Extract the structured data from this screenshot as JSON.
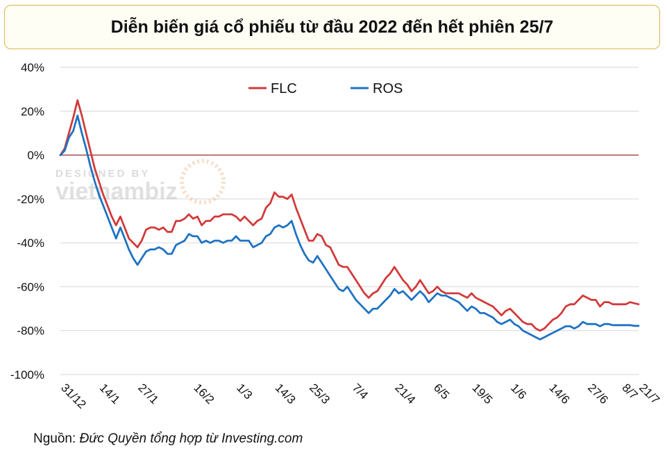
{
  "chart_data": {
    "type": "line",
    "title": "Diễn biến giá cổ phiếu từ đầu 2022 đến hết phiên 25/7",
    "xlabel": "",
    "ylabel": "",
    "ylim": [
      -100,
      40
    ],
    "yticks": [
      40,
      20,
      0,
      -20,
      -40,
      -60,
      -80,
      -100
    ],
    "ytick_labels": [
      "40%",
      "20%",
      "0%",
      "-20%",
      "-40%",
      "-60%",
      "-80%",
      "-100%"
    ],
    "xtick_labels": [
      "31/12",
      "14/1",
      "27/1",
      "16/2",
      "1/3",
      "14/3",
      "25/3",
      "7/4",
      "21/4",
      "6/5",
      "19/5",
      "1/6",
      "14/6",
      "27/6",
      "8/7",
      "21/7"
    ],
    "grid": "horizontal",
    "legend_position": "top-center",
    "series": [
      {
        "name": "FLC",
        "color": "#d23a3a",
        "values": [
          [
            0,
            0
          ],
          [
            1,
            3
          ],
          [
            2,
            10
          ],
          [
            3,
            17
          ],
          [
            4,
            25
          ],
          [
            5,
            18
          ],
          [
            6,
            10
          ],
          [
            7,
            2
          ],
          [
            8,
            -6
          ],
          [
            9,
            -12
          ],
          [
            10,
            -18
          ],
          [
            11,
            -23
          ],
          [
            12,
            -28
          ],
          [
            13,
            -32
          ],
          [
            14,
            -28
          ],
          [
            15,
            -33
          ],
          [
            16,
            -38
          ],
          [
            17,
            -40
          ],
          [
            18,
            -42
          ],
          [
            19,
            -39
          ],
          [
            20,
            -34
          ],
          [
            21,
            -33
          ],
          [
            22,
            -33
          ],
          [
            23,
            -34
          ],
          [
            24,
            -33
          ],
          [
            25,
            -35
          ],
          [
            26,
            -35
          ],
          [
            27,
            -30
          ],
          [
            28,
            -30
          ],
          [
            29,
            -29
          ],
          [
            30,
            -27
          ],
          [
            31,
            -29
          ],
          [
            32,
            -28
          ],
          [
            33,
            -32
          ],
          [
            34,
            -30
          ],
          [
            35,
            -30
          ],
          [
            36,
            -28
          ],
          [
            37,
            -28
          ],
          [
            38,
            -27
          ],
          [
            39,
            -27
          ],
          [
            40,
            -27
          ],
          [
            41,
            -28
          ],
          [
            42,
            -30
          ],
          [
            43,
            -28
          ],
          [
            44,
            -30
          ],
          [
            45,
            -32
          ],
          [
            46,
            -30
          ],
          [
            47,
            -29
          ],
          [
            48,
            -24
          ],
          [
            49,
            -22
          ],
          [
            50,
            -17
          ],
          [
            51,
            -19
          ],
          [
            52,
            -19
          ],
          [
            53,
            -20
          ],
          [
            54,
            -18
          ],
          [
            55,
            -24
          ],
          [
            56,
            -29
          ],
          [
            57,
            -34
          ],
          [
            58,
            -39
          ],
          [
            59,
            -39
          ],
          [
            60,
            -36
          ],
          [
            61,
            -37
          ],
          [
            62,
            -41
          ],
          [
            63,
            -42
          ],
          [
            64,
            -46
          ],
          [
            65,
            -50
          ],
          [
            66,
            -51
          ],
          [
            67,
            -51
          ],
          [
            68,
            -54
          ],
          [
            69,
            -57
          ],
          [
            70,
            -60
          ],
          [
            71,
            -63
          ],
          [
            72,
            -65
          ],
          [
            73,
            -63
          ],
          [
            74,
            -62
          ],
          [
            75,
            -59
          ],
          [
            76,
            -56
          ],
          [
            77,
            -54
          ],
          [
            78,
            -51
          ],
          [
            79,
            -54
          ],
          [
            80,
            -57
          ],
          [
            81,
            -59
          ],
          [
            82,
            -62
          ],
          [
            83,
            -60
          ],
          [
            84,
            -57
          ],
          [
            85,
            -60
          ],
          [
            86,
            -63
          ],
          [
            87,
            -62
          ],
          [
            88,
            -60
          ],
          [
            89,
            -62
          ],
          [
            90,
            -63
          ],
          [
            91,
            -63
          ],
          [
            92,
            -63
          ],
          [
            93,
            -63
          ],
          [
            94,
            -64
          ],
          [
            95,
            -65
          ],
          [
            96,
            -63
          ],
          [
            97,
            -65
          ],
          [
            98,
            -66
          ],
          [
            99,
            -67
          ],
          [
            100,
            -68
          ],
          [
            101,
            -69
          ],
          [
            102,
            -71
          ],
          [
            103,
            -73
          ],
          [
            104,
            -71
          ],
          [
            105,
            -70
          ],
          [
            106,
            -72
          ],
          [
            107,
            -74
          ],
          [
            108,
            -76
          ],
          [
            109,
            -77
          ],
          [
            110,
            -77
          ],
          [
            111,
            -79
          ],
          [
            112,
            -80
          ],
          [
            113,
            -79
          ],
          [
            114,
            -77
          ],
          [
            115,
            -75
          ],
          [
            116,
            -74
          ],
          [
            117,
            -72
          ],
          [
            118,
            -69
          ],
          [
            119,
            -68
          ],
          [
            120,
            -68
          ],
          [
            121,
            -66
          ],
          [
            122,
            -64
          ],
          [
            123,
            -65
          ],
          [
            124,
            -66
          ],
          [
            125,
            -66
          ],
          [
            126,
            -69
          ],
          [
            127,
            -67
          ],
          [
            128,
            -67
          ],
          [
            129,
            -68
          ],
          [
            130,
            -68
          ],
          [
            131,
            -68
          ],
          [
            132,
            -68
          ],
          [
            133,
            -67
          ],
          [
            134,
            -67.5
          ],
          [
            135,
            -68
          ]
        ]
      },
      {
        "name": "ROS",
        "color": "#1f72c2",
        "values": [
          [
            0,
            0
          ],
          [
            1,
            2
          ],
          [
            2,
            8
          ],
          [
            3,
            11
          ],
          [
            4,
            18
          ],
          [
            5,
            10
          ],
          [
            6,
            3
          ],
          [
            7,
            -5
          ],
          [
            8,
            -12
          ],
          [
            9,
            -18
          ],
          [
            10,
            -23
          ],
          [
            11,
            -28
          ],
          [
            12,
            -33
          ],
          [
            13,
            -38
          ],
          [
            14,
            -33
          ],
          [
            15,
            -38
          ],
          [
            16,
            -43
          ],
          [
            17,
            -47
          ],
          [
            18,
            -50
          ],
          [
            19,
            -47
          ],
          [
            20,
            -44
          ],
          [
            21,
            -43
          ],
          [
            22,
            -43
          ],
          [
            23,
            -42
          ],
          [
            24,
            -43
          ],
          [
            25,
            -45
          ],
          [
            26,
            -45
          ],
          [
            27,
            -41
          ],
          [
            28,
            -40
          ],
          [
            29,
            -39
          ],
          [
            30,
            -36
          ],
          [
            31,
            -37
          ],
          [
            32,
            -37
          ],
          [
            33,
            -40
          ],
          [
            34,
            -39
          ],
          [
            35,
            -40
          ],
          [
            36,
            -39
          ],
          [
            37,
            -39
          ],
          [
            38,
            -40
          ],
          [
            39,
            -39
          ],
          [
            40,
            -39
          ],
          [
            41,
            -37
          ],
          [
            42,
            -39
          ],
          [
            43,
            -39
          ],
          [
            44,
            -39
          ],
          [
            45,
            -42
          ],
          [
            46,
            -41
          ],
          [
            47,
            -40
          ],
          [
            48,
            -37
          ],
          [
            49,
            -36
          ],
          [
            50,
            -33
          ],
          [
            51,
            -32
          ],
          [
            52,
            -33
          ],
          [
            53,
            -32
          ],
          [
            54,
            -30
          ],
          [
            55,
            -36
          ],
          [
            56,
            -41
          ],
          [
            57,
            -45
          ],
          [
            58,
            -48
          ],
          [
            59,
            -49
          ],
          [
            60,
            -46
          ],
          [
            61,
            -49
          ],
          [
            62,
            -52
          ],
          [
            63,
            -55
          ],
          [
            64,
            -58
          ],
          [
            65,
            -61
          ],
          [
            66,
            -62
          ],
          [
            67,
            -60
          ],
          [
            68,
            -63
          ],
          [
            69,
            -66
          ],
          [
            70,
            -68
          ],
          [
            71,
            -70
          ],
          [
            72,
            -72
          ],
          [
            73,
            -70
          ],
          [
            74,
            -70
          ],
          [
            75,
            -68
          ],
          [
            76,
            -66
          ],
          [
            77,
            -64
          ],
          [
            78,
            -61
          ],
          [
            79,
            -63
          ],
          [
            80,
            -62
          ],
          [
            81,
            -64
          ],
          [
            82,
            -66
          ],
          [
            83,
            -64
          ],
          [
            84,
            -62
          ],
          [
            85,
            -64
          ],
          [
            86,
            -67
          ],
          [
            87,
            -65
          ],
          [
            88,
            -63
          ],
          [
            89,
            -64
          ],
          [
            90,
            -64
          ],
          [
            91,
            -65
          ],
          [
            92,
            -66
          ],
          [
            93,
            -67
          ],
          [
            94,
            -69
          ],
          [
            95,
            -71
          ],
          [
            96,
            -69
          ],
          [
            97,
            -70
          ],
          [
            98,
            -72
          ],
          [
            99,
            -72
          ],
          [
            100,
            -73
          ],
          [
            101,
            -74
          ],
          [
            102,
            -76
          ],
          [
            103,
            -77
          ],
          [
            104,
            -76
          ],
          [
            105,
            -75
          ],
          [
            106,
            -77
          ],
          [
            107,
            -78
          ],
          [
            108,
            -80
          ],
          [
            109,
            -81
          ],
          [
            110,
            -82
          ],
          [
            111,
            -83
          ],
          [
            112,
            -84
          ],
          [
            113,
            -83
          ],
          [
            114,
            -82
          ],
          [
            115,
            -81
          ],
          [
            116,
            -80
          ],
          [
            117,
            -79
          ],
          [
            118,
            -78
          ],
          [
            119,
            -78
          ],
          [
            120,
            -79
          ],
          [
            121,
            -78
          ],
          [
            122,
            -76
          ],
          [
            123,
            -77
          ],
          [
            124,
            -77
          ],
          [
            125,
            -77
          ],
          [
            126,
            -78
          ],
          [
            127,
            -77
          ],
          [
            128,
            -77
          ],
          [
            129,
            -77.5
          ],
          [
            130,
            -77.5
          ],
          [
            131,
            -77.5
          ],
          [
            132,
            -77.5
          ],
          [
            133,
            -77.5
          ],
          [
            134,
            -77.8
          ],
          [
            135,
            -77.8
          ]
        ]
      }
    ],
    "x_tick_index": [
      0,
      9,
      18,
      31,
      41,
      50,
      58,
      68,
      78,
      87,
      96,
      105,
      114,
      123,
      131,
      135
    ]
  },
  "watermark": {
    "line1": "DESIGNED BY",
    "line2": "vietnambiz"
  },
  "source": {
    "prefix": "Nguồn: ",
    "text": "Đức Quyền tổng hợp từ Investing.com"
  }
}
